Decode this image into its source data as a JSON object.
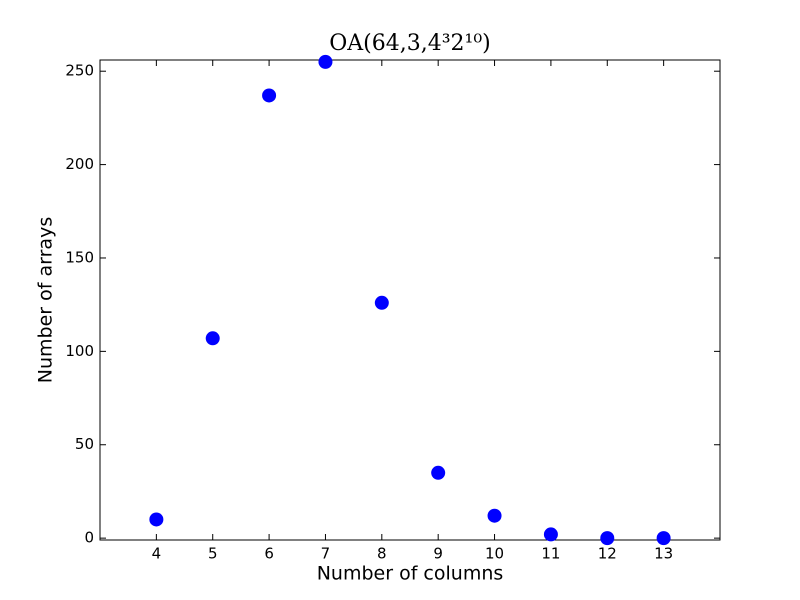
{
  "chart_data": {
    "type": "scatter",
    "title": "OA(64,3,4³2¹⁰)",
    "x_label": "Number of columns",
    "y_label": "Number of arrays",
    "x": [
      4,
      5,
      6,
      7,
      8,
      9,
      10,
      11,
      12,
      13
    ],
    "values": [
      10,
      107,
      237,
      255,
      126,
      35,
      12,
      2,
      0,
      0
    ],
    "color": "#0000ff",
    "xlim": [
      3,
      14
    ],
    "xticks": [
      4,
      5,
      6,
      7,
      8,
      9,
      10,
      11,
      12,
      13
    ],
    "ylim": [
      -1,
      256
    ],
    "yticks": [
      0,
      50,
      100,
      150,
      200,
      250
    ]
  }
}
